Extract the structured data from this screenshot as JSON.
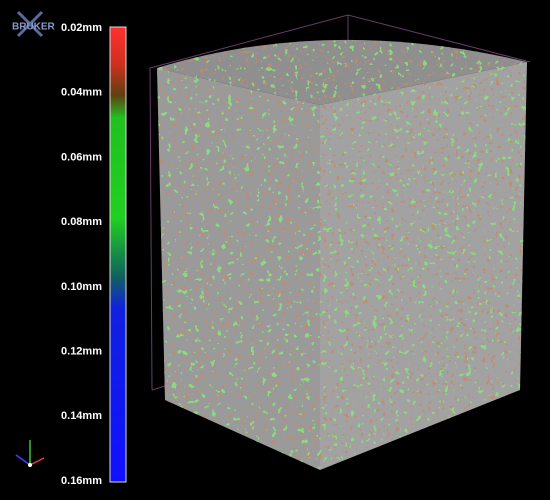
{
  "logo": "BRUKER",
  "scale": {
    "labels": [
      "0.02mm",
      "0.04mm",
      "0.06mm",
      "0.08mm",
      "0.10mm",
      "0.12mm",
      "0.14mm",
      "0.16mm"
    ]
  }
}
